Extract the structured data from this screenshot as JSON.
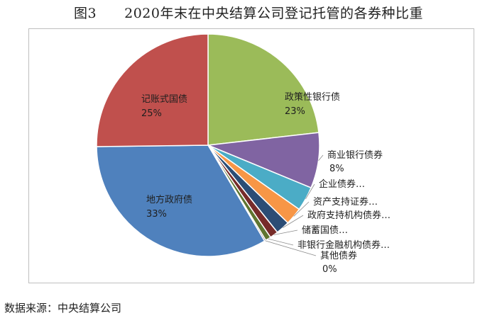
{
  "title": "图3　　2020年末在中央结算公司登记托管的各券种比重",
  "source": "数据来源：中央结算公司",
  "chart_data": {
    "type": "pie",
    "title": "",
    "series": [
      {
        "name": "政策性银行债",
        "value": 23,
        "color": "#9BBB59",
        "label": "23%"
      },
      {
        "name": "商业银行债券",
        "value": 8,
        "color": "#8064A2",
        "label": "8%"
      },
      {
        "name": "企业债券…",
        "value": 3.5,
        "color": "#4BACC6",
        "label": ""
      },
      {
        "name": "资产支持证券…",
        "value": 2.5,
        "color": "#F79646",
        "label": ""
      },
      {
        "name": "政府支持机构债券…",
        "value": 2,
        "color": "#2C4D75",
        "label": ""
      },
      {
        "name": "储蓄国债…",
        "value": 1.2,
        "color": "#772C2A",
        "label": ""
      },
      {
        "name": "非银行金融机构债券…",
        "value": 0.8,
        "color": "#5F7530",
        "label": ""
      },
      {
        "name": "其他债券",
        "value": 0.2,
        "color": "#4D3B62",
        "label": "0%"
      },
      {
        "name": "地方政府债",
        "value": 33,
        "color": "#4F81BD",
        "label": "33%"
      },
      {
        "name": "记账式国债",
        "value": 25,
        "color": "#C0504D",
        "label": "25%"
      }
    ],
    "legend": "none"
  }
}
